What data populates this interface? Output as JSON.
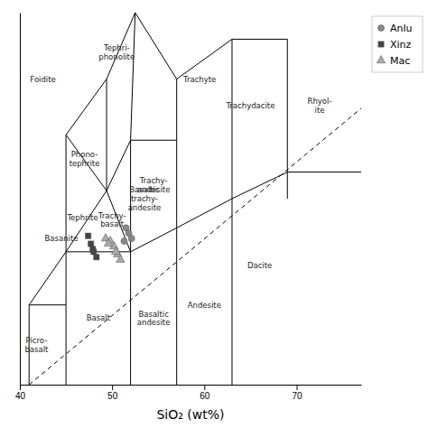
{
  "chart_data": {
    "type": "scatter",
    "xlabel": "SiO₂ (wt%)",
    "xlim": [
      40,
      77
    ],
    "ylim": [
      0,
      14
    ],
    "xticks": [
      40,
      50,
      60,
      70
    ],
    "yticks": [],
    "tick_labels": "x",
    "legend": "right",
    "series": [
      {
        "name": "Anlu",
        "color": "#888888",
        "marker": "circle",
        "x": [
          51.5,
          51.8,
          52.1,
          51.3
        ],
        "values": [
          5.9,
          5.7,
          5.5,
          5.4
        ]
      },
      {
        "name": "Xinz",
        "color": "#444444",
        "marker": "square",
        "x": [
          47.4,
          47.7,
          48.0,
          48.3,
          47.9
        ],
        "values": [
          5.6,
          5.3,
          5.0,
          4.8,
          5.1
        ]
      },
      {
        "name": "Mac",
        "color": "#aaaaaa",
        "marker": "triangle",
        "x": [
          49.3,
          49.8,
          50.2,
          50.6,
          50.9,
          49.6,
          50.4
        ],
        "values": [
          5.5,
          5.4,
          5.2,
          4.9,
          4.7,
          5.3,
          5.0
        ]
      },
      {
        "type": "line",
        "color": "#000000",
        "line_style": "solid",
        "x": [
          41,
          41,
          null,
          41,
          45,
          null,
          41,
          45,
          null,
          45,
          45,
          null,
          45,
          52,
          null,
          52,
          52,
          null,
          57,
          57,
          null,
          63,
          63,
          null,
          69,
          69,
          null,
          52,
          57,
          null,
          57,
          63,
          null,
          63,
          69,
          null,
          69,
          77,
          null,
          45,
          49.4,
          null,
          49.4,
          52,
          null,
          49.4,
          52,
          null,
          52,
          52,
          null,
          52,
          57,
          null,
          57,
          57,
          null,
          45,
          49.4,
          null,
          45,
          49.4,
          null,
          45,
          45,
          null,
          49.4,
          52.5,
          null,
          49.4,
          49.4,
          null,
          52.5,
          57,
          null,
          52,
          52.5,
          null,
          57,
          57,
          null,
          57,
          63,
          null,
          63,
          63,
          null,
          63,
          69,
          null,
          69,
          69
        ],
        "values": [
          0,
          3,
          null,
          3,
          3,
          null,
          3,
          5,
          null,
          0,
          5,
          null,
          5,
          5,
          null,
          0,
          5,
          null,
          0,
          5.9,
          null,
          0,
          7,
          null,
          7,
          8,
          null,
          5,
          5.9,
          null,
          5.9,
          7,
          null,
          7,
          8,
          null,
          8,
          8,
          null,
          5,
          7.3,
          null,
          7.3,
          5,
          null,
          7.3,
          9.2,
          null,
          5,
          9.2,
          null,
          9.2,
          9.2,
          null,
          5.9,
          9.2,
          null,
          9.4,
          7.3,
          null,
          9.4,
          11.5,
          null,
          5,
          9.4,
          null,
          11.5,
          14,
          null,
          7.3,
          11.5,
          null,
          14,
          11.5,
          null,
          9.2,
          14,
          null,
          9.2,
          11.5,
          null,
          11.5,
          13,
          null,
          7,
          13,
          null,
          13,
          13,
          null,
          8,
          13
        ]
      },
      {
        "type": "line",
        "color": "#000000",
        "line_style": "dashed",
        "x": [
          41,
          77
        ],
        "values": [
          0,
          10.4
        ]
      }
    ],
    "annotations": [
      {
        "text": "Foidite",
        "x": 42.5,
        "y": 11.5
      },
      {
        "text": "Tephri-\nphonolite",
        "x": 50.5,
        "y": 12.5
      },
      {
        "text": "Trachyte",
        "x": 59.5,
        "y": 11.5
      },
      {
        "text": "Phono-\ntephrite",
        "x": 47.0,
        "y": 8.5
      },
      {
        "text": "Trachy-\nandesite",
        "x": 54.5,
        "y": 7.5
      },
      {
        "text": "Trachydacite",
        "x": 65.0,
        "y": 10.5
      },
      {
        "text": "Rhyol-\nite",
        "x": 72.5,
        "y": 10.5
      },
      {
        "text": "Tephrite",
        "x": 46.8,
        "y": 6.3
      },
      {
        "text": "Basanite",
        "x": 44.5,
        "y": 5.5
      },
      {
        "text": "Trachy-\nbasalt",
        "x": 50.0,
        "y": 6.2
      },
      {
        "text": "Basaltic\ntrachy-\nandesite",
        "x": 53.5,
        "y": 7.0
      },
      {
        "text": "Basalt",
        "x": 48.5,
        "y": 2.5
      },
      {
        "text": "Basaltic\nandesite",
        "x": 54.5,
        "y": 2.5
      },
      {
        "text": "Andesite",
        "x": 60.0,
        "y": 3.0
      },
      {
        "text": "Dacite",
        "x": 66.0,
        "y": 4.5
      },
      {
        "text": "Picro-\nbasalt",
        "x": 41.8,
        "y": 1.5
      }
    ]
  }
}
